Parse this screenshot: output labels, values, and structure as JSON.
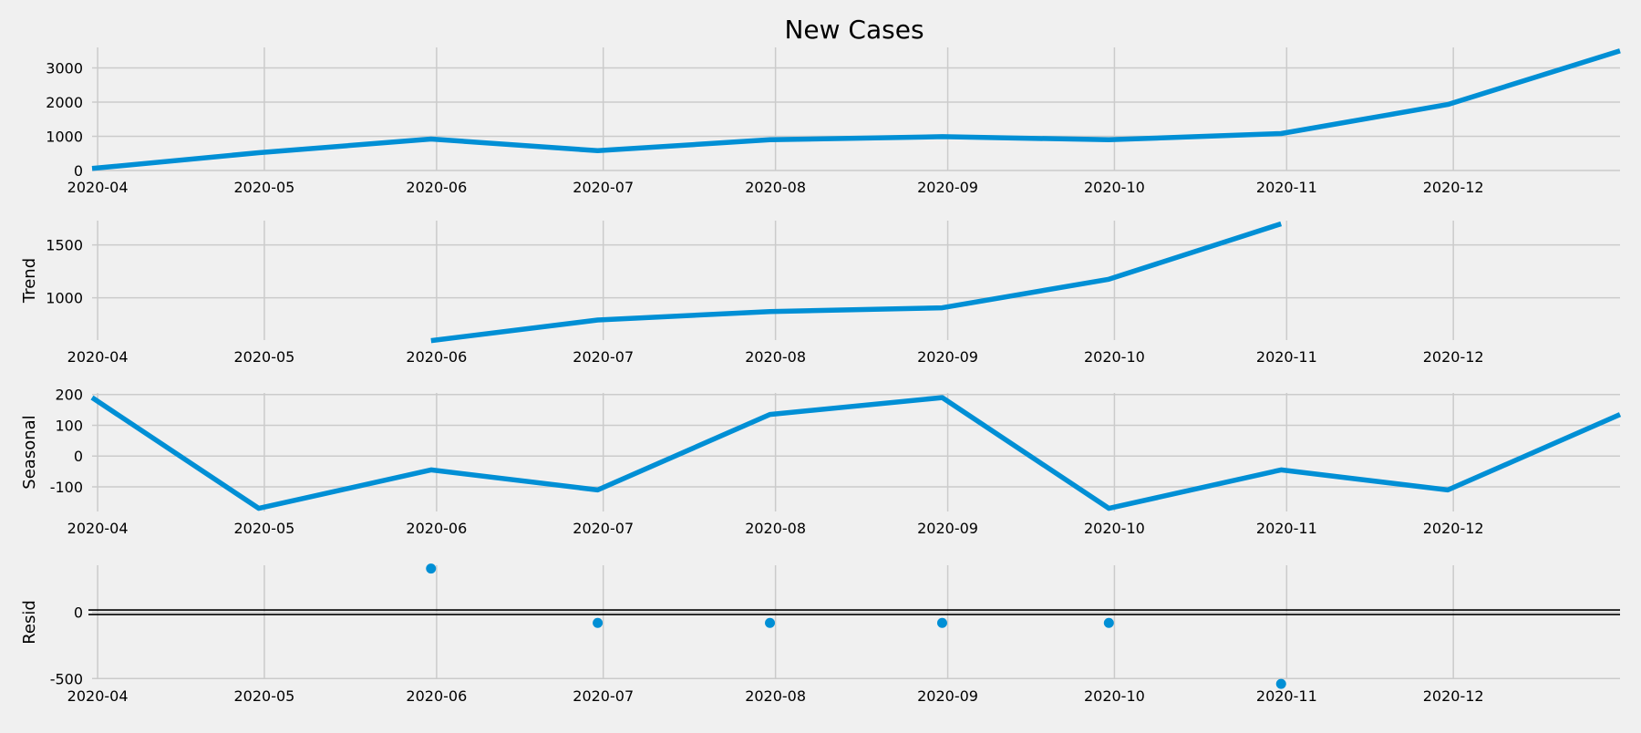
{
  "chart_data": {
    "type": "line",
    "title": "New Cases",
    "x_ticks": [
      "2020-04",
      "2020-05",
      "2020-06",
      "2020-07",
      "2020-08",
      "2020-09",
      "2020-10",
      "2020-11",
      "2020-12"
    ],
    "x_range": [
      "2020-03-31",
      "2020-12-31"
    ],
    "grid": true,
    "panels": [
      {
        "key": "observed",
        "type": "line",
        "ylabel": "",
        "ylim": [
          0,
          3600
        ],
        "y_ticks": [
          0,
          1000,
          2000,
          3000
        ],
        "series": [
          {
            "x": [
              "2020-03-31",
              "2020-04-30",
              "2020-05-31",
              "2020-06-30",
              "2020-07-31",
              "2020-08-31",
              "2020-09-30",
              "2020-10-31",
              "2020-11-30",
              "2020-12-31"
            ],
            "y": [
              60,
              520,
              920,
              580,
              900,
              990,
              900,
              1080,
              1930,
              3500
            ]
          }
        ]
      },
      {
        "key": "trend",
        "type": "line",
        "ylabel": "Trend",
        "ylim": [
          600,
          1730
        ],
        "y_ticks": [
          1000,
          1500
        ],
        "series": [
          {
            "x": [
              "2020-05-31",
              "2020-06-30",
              "2020-07-31",
              "2020-08-31",
              "2020-09-30",
              "2020-10-31"
            ],
            "y": [
              595,
              790,
              870,
              905,
              1175,
              1700
            ]
          }
        ]
      },
      {
        "key": "seasonal",
        "type": "line",
        "ylabel": "Seasonal",
        "ylim": [
          -180,
          205
        ],
        "y_ticks": [
          -100,
          0,
          100,
          200
        ],
        "series": [
          {
            "x": [
              "2020-03-31",
              "2020-04-30",
              "2020-05-31",
              "2020-06-30",
              "2020-07-31",
              "2020-08-31",
              "2020-09-30",
              "2020-10-31",
              "2020-11-30",
              "2020-12-31"
            ],
            "y": [
              190,
              -170,
              -45,
              -110,
              135,
              190,
              -170,
              -45,
              -110,
              135
            ]
          }
        ]
      },
      {
        "key": "resid",
        "type": "scatter",
        "ylabel": "Resid",
        "ylim": [
          -505,
          355
        ],
        "y_ticks": [
          -500,
          0
        ],
        "zero_line": true,
        "series": [
          {
            "x": [
              "2020-05-31",
              "2020-06-30",
              "2020-07-31",
              "2020-08-31",
              "2020-09-30",
              "2020-10-31"
            ],
            "y": [
              330,
              -80,
              -80,
              -80,
              -80,
              -540
            ]
          }
        ]
      }
    ]
  }
}
